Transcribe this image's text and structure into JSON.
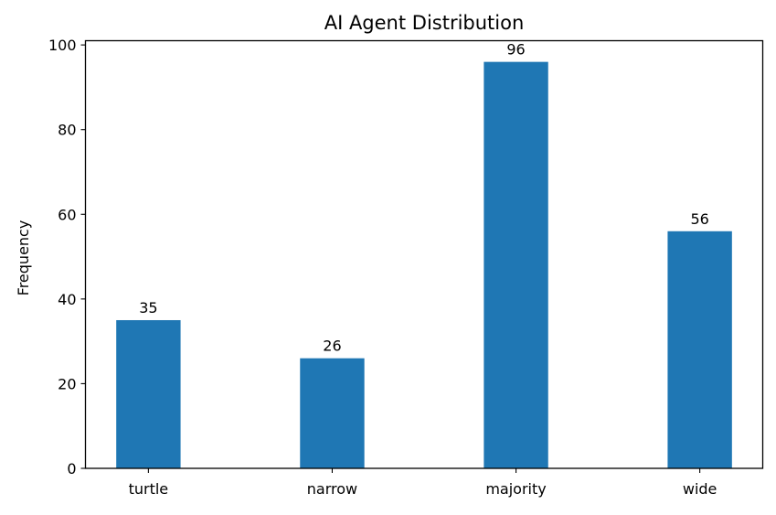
{
  "chart_data": {
    "type": "bar",
    "title": "AI Agent Distribution",
    "xlabel": "",
    "ylabel": "Frequency",
    "categories": [
      "turtle",
      "narrow",
      "majority",
      "wide"
    ],
    "values": [
      35,
      26,
      96,
      56
    ],
    "ylim": [
      0,
      101
    ],
    "yticks": [
      0,
      20,
      40,
      60,
      80,
      100
    ],
    "grid": false,
    "legend": "none",
    "bar_color": "#1f77b4",
    "data_labels": true
  }
}
